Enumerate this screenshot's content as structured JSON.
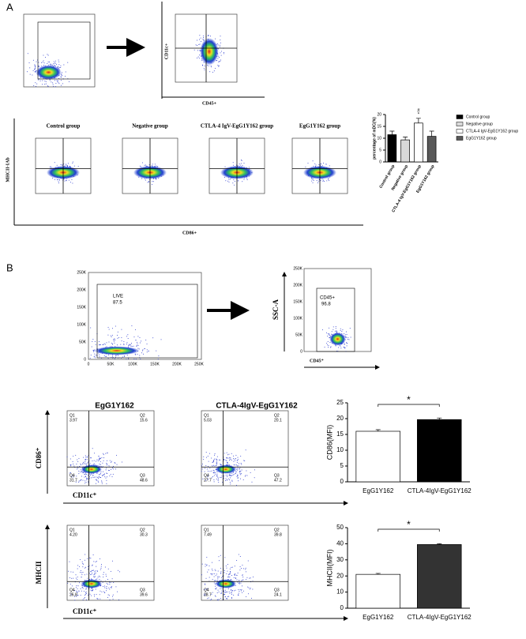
{
  "panels": {
    "a": "A",
    "b": "B"
  },
  "labels": {
    "a_cd11c": "CD11c+",
    "a_cd45": "CD45+",
    "a_mhc": "MHCII-IAb",
    "a_cd86": "CD86+",
    "a_groups": [
      "Control group",
      "Negative group",
      "CTLA-4 IgV-EgG1Y162 group",
      "EgG1Y162 group"
    ],
    "b_ssc": "SSC-A",
    "b_cd45": "CD45⁺",
    "b_live": "LIVE",
    "b_live_value": "87.5",
    "b_cd45_gate": "CD45+",
    "b_cd45_value": "96.8",
    "b_live_ticks": [
      "0",
      "50K",
      "100K",
      "150K",
      "200K",
      "250K"
    ],
    "b_titles": [
      "EgG1Y162",
      "CTLA-4IgV-EgG1Y162"
    ],
    "b_cd86": "CD86⁺",
    "b_mhc": "MHCII",
    "b_cd11c": "CD11c⁺",
    "quadrant_names": [
      "Q1",
      "Q2",
      "Q3",
      "Q4"
    ],
    "b_quadrants": [
      [
        "3.97",
        "15.6",
        "48.6",
        "31.7"
      ],
      [
        "5.03",
        "20.1",
        "47.2",
        "27.7"
      ],
      [
        "4.20",
        "30.3",
        "39.6",
        "26.8"
      ],
      [
        "7.49",
        "39.8",
        "24.1",
        "28.7"
      ]
    ]
  },
  "chart_data": [
    {
      "type": "bar",
      "ylabel": "percentage of mDC(%)",
      "categories": [
        "Control group",
        "Negative group",
        "CTLA-4 IgV-EgG1Y162 group",
        "EgG1Y162 group"
      ],
      "values": [
        11.5,
        9.3,
        16.4,
        10.8
      ],
      "errors": [
        1.5,
        1.2,
        2.0,
        2.2
      ],
      "colors": [
        "#000000",
        "#d9d9d9",
        "#ffffff",
        "#595959"
      ],
      "ylim": [
        0,
        20
      ],
      "yticks": [
        0,
        5,
        10,
        15,
        20
      ],
      "annotations": [
        "#",
        "*"
      ],
      "legend": true
    },
    {
      "type": "bar",
      "ylabel": "CD86(MFI)",
      "categories": [
        "EgG1Y162",
        "CTLA-4IgV-EgG1Y162"
      ],
      "values": [
        16,
        19.7
      ],
      "errors": [
        0.5,
        0.5
      ],
      "colors": [
        "#ffffff",
        "#000000"
      ],
      "ylim": [
        0,
        25
      ],
      "yticks": [
        0,
        5,
        10,
        15,
        20,
        25
      ],
      "significance": "*"
    },
    {
      "type": "bar",
      "ylabel": "MHCII(MFI)",
      "categories": [
        "EgG1Y162",
        "CTLA-4IgV-EgG1Y162"
      ],
      "values": [
        21,
        39.5
      ],
      "errors": [
        0.6,
        0.5
      ],
      "colors": [
        "#ffffff",
        "#333333"
      ],
      "ylim": [
        0,
        50
      ],
      "yticks": [
        0,
        10,
        20,
        30,
        40,
        50
      ],
      "significance": "*"
    }
  ]
}
